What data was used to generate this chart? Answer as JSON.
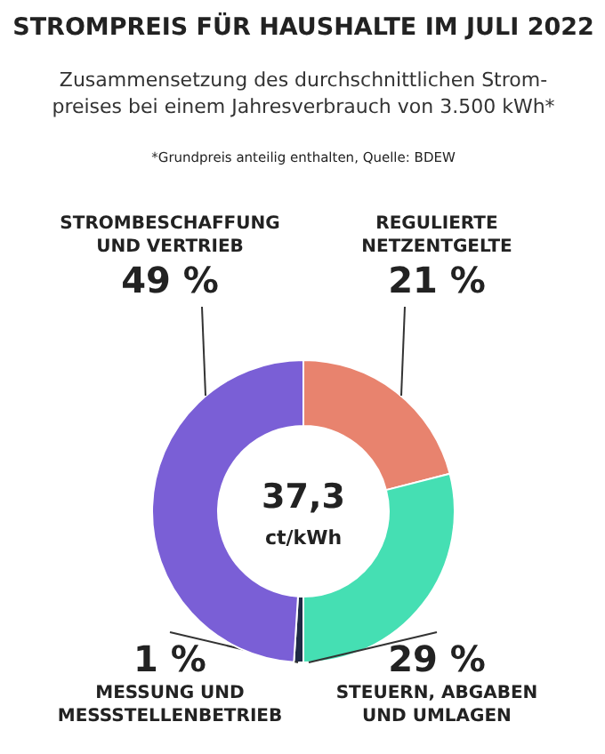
{
  "chart_data": {
    "type": "donut",
    "title": "STROMPREIS FÜR HAUSHALTE IM JULI 2022",
    "subtitle": "Zusammensetzung des durchschnittlichen Strom-\npreises bei einem Jahresverbrauch von 3.500 kWh*",
    "categories": [
      "REGULIERTE\nNETZENTGELTE",
      "STEUERN, ABGABEN\nUND UMLAGEN",
      "MESSUNG UND\nMESSSTELLENBETRIEB",
      "STROMBESCHAFFUNG\nUND VERTRIEB"
    ],
    "values": [
      21,
      29,
      1,
      49
    ],
    "value_labels": [
      "21 %",
      "29 %",
      "1 %",
      "49 %"
    ],
    "colors": [
      "#e8836e",
      "#45dfb3",
      "#1f2a44",
      "#7a5fd6"
    ],
    "annotations": [
      "*Grundpreis anteilig enthalten, Quelle: BDEW",
      "37,3",
      "ct/kWh"
    ]
  }
}
